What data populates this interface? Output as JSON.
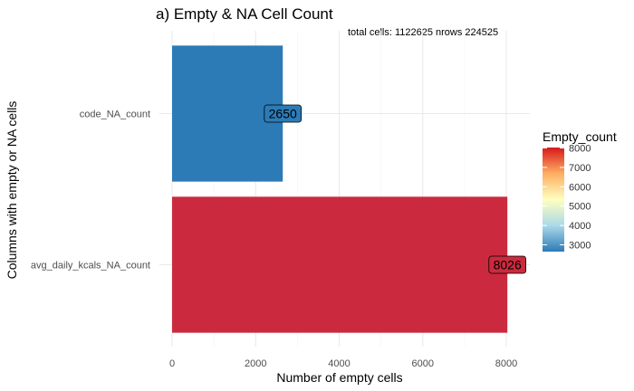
{
  "chart_data": {
    "type": "bar",
    "orientation": "horizontal",
    "title": "a) Empty & NA Cell Count",
    "annotation": "total cells: 1122625  nrows 224525",
    "xlabel": "Number of empty cells",
    "ylabel": "Columns with empty or NA cells",
    "xlim": [
      0,
      8400
    ],
    "x_ticks": [
      0,
      2000,
      4000,
      6000,
      8000
    ],
    "grid": true,
    "categories": [
      "code_NA_count",
      "avg_daily_kcals_NA_count"
    ],
    "values": [
      2650,
      8026
    ],
    "data_labels": [
      "2650",
      "8026"
    ],
    "bar_colors": [
      "#2C7BB6",
      "#CB2A3E"
    ],
    "legend": {
      "title": "Empty_count",
      "placement": "right",
      "ticks": [
        3000,
        4000,
        5000,
        6000,
        7000,
        8000
      ],
      "range": [
        2650,
        8026
      ],
      "colors": [
        "#2C7BB6",
        "#ABD9E9",
        "#FFFFBF",
        "#FDAE61",
        "#D7191C"
      ]
    }
  }
}
